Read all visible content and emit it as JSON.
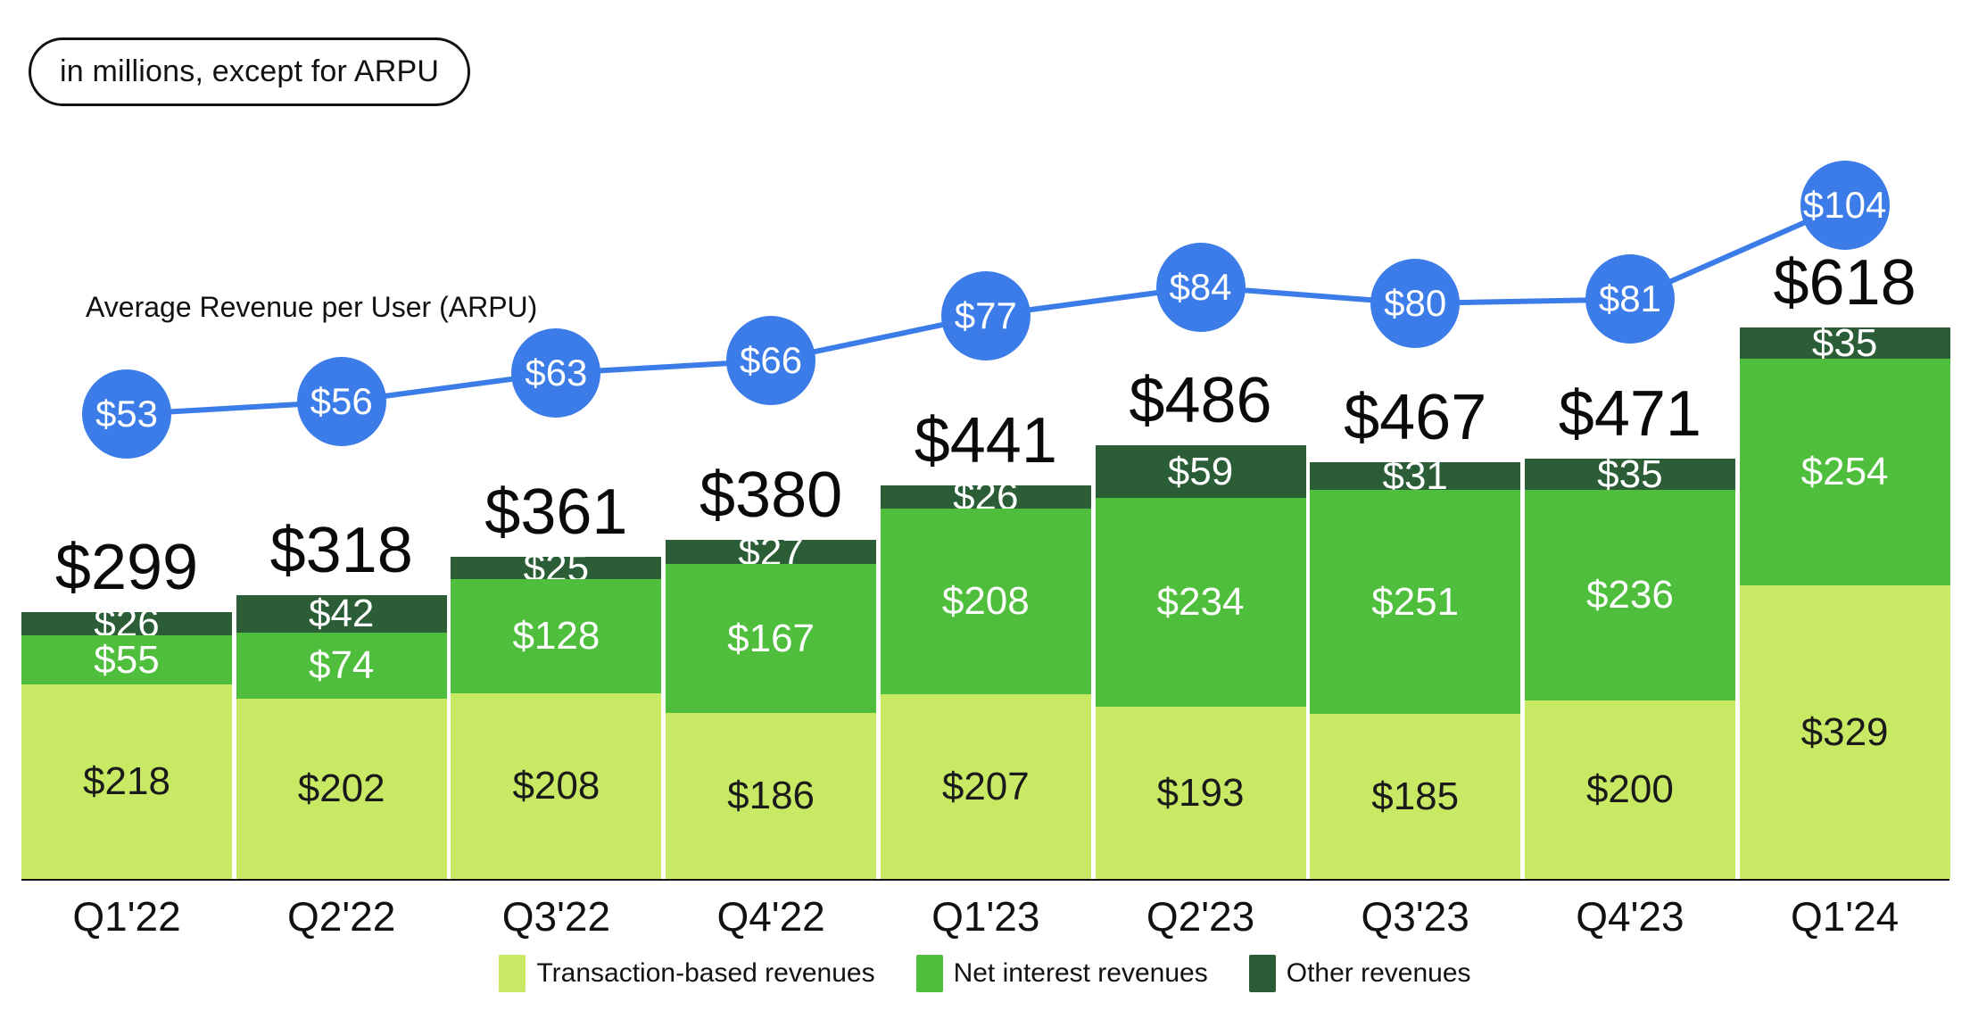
{
  "badge": {
    "label": "in millions, except for ARPU"
  },
  "chart_data": {
    "type": "bar",
    "subtype": "stacked-bar-with-line-overlay",
    "title": "",
    "unit_prefix": "$",
    "units_note": "in millions, except for ARPU",
    "categories": [
      "Q1'22",
      "Q2'22",
      "Q3'22",
      "Q4'22",
      "Q1'23",
      "Q2'23",
      "Q3'23",
      "Q4'23",
      "Q1'24"
    ],
    "series": [
      {
        "name": "Transaction-based revenues",
        "color": "#C8E964",
        "label_color": "#1a1a1a",
        "values": [
          218,
          202,
          208,
          186,
          207,
          193,
          185,
          200,
          329
        ]
      },
      {
        "name": "Net interest revenues",
        "color": "#4EBE3C",
        "label_color": "#ffffff",
        "values": [
          55,
          74,
          128,
          167,
          208,
          234,
          251,
          236,
          254
        ]
      },
      {
        "name": "Other revenues",
        "color": "#2B5E37",
        "label_color": "#ffffff",
        "values": [
          26,
          42,
          25,
          27,
          26,
          59,
          31,
          35,
          35
        ]
      }
    ],
    "totals": [
      299,
      318,
      361,
      380,
      441,
      486,
      467,
      471,
      618
    ],
    "line_series": {
      "label": "Average Revenue per User (ARPU)",
      "color": "#3C7CE8",
      "values": [
        53,
        56,
        63,
        66,
        77,
        84,
        80,
        81,
        104
      ]
    },
    "legend": [
      "Transaction-based revenues",
      "Net interest revenues",
      "Other revenues"
    ],
    "legend_position": "bottom",
    "grid": false,
    "y_axis_shown": false
  }
}
